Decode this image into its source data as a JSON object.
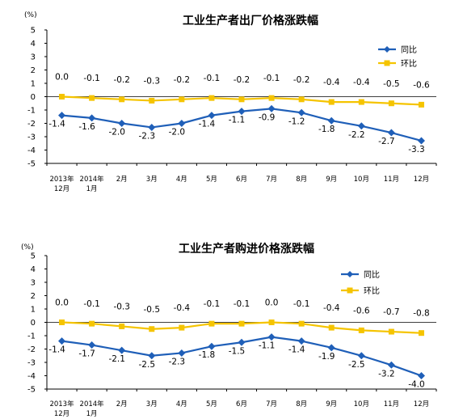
{
  "chart_data": [
    {
      "type": "line",
      "title": "工业生产者出厂价格涨跌幅",
      "unit_label": "(%)",
      "ylim": [
        -5,
        5
      ],
      "yticks": [
        "5",
        "4",
        "3",
        "2",
        "1",
        "0",
        "-1",
        "-2",
        "-3",
        "-4",
        "-5"
      ],
      "categories": [
        [
          "2013年",
          "12月"
        ],
        [
          "2014年",
          "1月"
        ],
        [
          "2月"
        ],
        [
          "3月"
        ],
        [
          "4月"
        ],
        [
          "5月"
        ],
        [
          "6月"
        ],
        [
          "7月"
        ],
        [
          "8月"
        ],
        [
          "9月"
        ],
        [
          "10月"
        ],
        [
          "11月"
        ],
        [
          "12月"
        ]
      ],
      "series": [
        {
          "name": "同比",
          "color": "#1f5fb8",
          "marker": "diamond",
          "values": [
            -1.4,
            -1.6,
            -2.0,
            -2.3,
            -2.0,
            -1.4,
            -1.1,
            -0.9,
            -1.2,
            -1.8,
            -2.2,
            -2.7,
            -3.3
          ],
          "labels": [
            "-1.4",
            "-1.6",
            "-2.0",
            "-2.3",
            "-2.0",
            "-1.4",
            "-1.1",
            "-0.9",
            "-1.2",
            "-1.8",
            "-2.2",
            "-2.7",
            "-3.3"
          ]
        },
        {
          "name": "环比",
          "color": "#f5c400",
          "marker": "square",
          "values": [
            0.0,
            -0.1,
            -0.2,
            -0.3,
            -0.2,
            -0.1,
            -0.2,
            -0.1,
            -0.2,
            -0.4,
            -0.4,
            -0.5,
            -0.6
          ],
          "labels": [
            "0.0",
            "-0.1",
            "-0.2",
            "-0.3",
            "-0.2",
            "-0.1",
            "-0.2",
            "-0.1",
            "-0.2",
            "-0.4",
            "-0.4",
            "-0.5",
            "-0.6"
          ]
        }
      ],
      "legend_position": "top-right"
    },
    {
      "type": "line",
      "title": "工业生产者购进价格涨跌幅",
      "unit_label": "(%)",
      "ylim": [
        -5,
        5
      ],
      "yticks": [
        "5",
        "4",
        "3",
        "2",
        "1",
        "0",
        "-1",
        "-2",
        "-3",
        "-4",
        "-5"
      ],
      "categories": [
        [
          "2013年",
          "12月"
        ],
        [
          "2014年",
          "1月"
        ],
        [
          "2月"
        ],
        [
          "3月"
        ],
        [
          "4月"
        ],
        [
          "5月"
        ],
        [
          "6月"
        ],
        [
          "7月"
        ],
        [
          "8月"
        ],
        [
          "9月"
        ],
        [
          "10月"
        ],
        [
          "11月"
        ],
        [
          "12月"
        ]
      ],
      "series": [
        {
          "name": "同比",
          "color": "#1f5fb8",
          "marker": "diamond",
          "values": [
            -1.4,
            -1.7,
            -2.1,
            -2.5,
            -2.3,
            -1.8,
            -1.5,
            -1.1,
            -1.4,
            -1.9,
            -2.5,
            -3.2,
            -4.0
          ],
          "labels": [
            "-1.4",
            "-1.7",
            "-2.1",
            "-2.5",
            "-2.3",
            "-1.8",
            "-1.5",
            "-1.1",
            "-1.4",
            "-1.9",
            "-2.5",
            "-3.2",
            "-4.0"
          ]
        },
        {
          "name": "环比",
          "color": "#f5c400",
          "marker": "square",
          "values": [
            0.0,
            -0.1,
            -0.3,
            -0.5,
            -0.4,
            -0.1,
            -0.1,
            0.0,
            -0.1,
            -0.4,
            -0.6,
            -0.7,
            -0.8
          ],
          "labels": [
            "0.0",
            "-0.1",
            "-0.3",
            "-0.5",
            "-0.4",
            "-0.1",
            "-0.1",
            "0.0",
            "-0.1",
            "-0.4",
            "-0.6",
            "-0.7",
            "-0.8"
          ]
        }
      ],
      "legend_position": "top-right"
    }
  ]
}
